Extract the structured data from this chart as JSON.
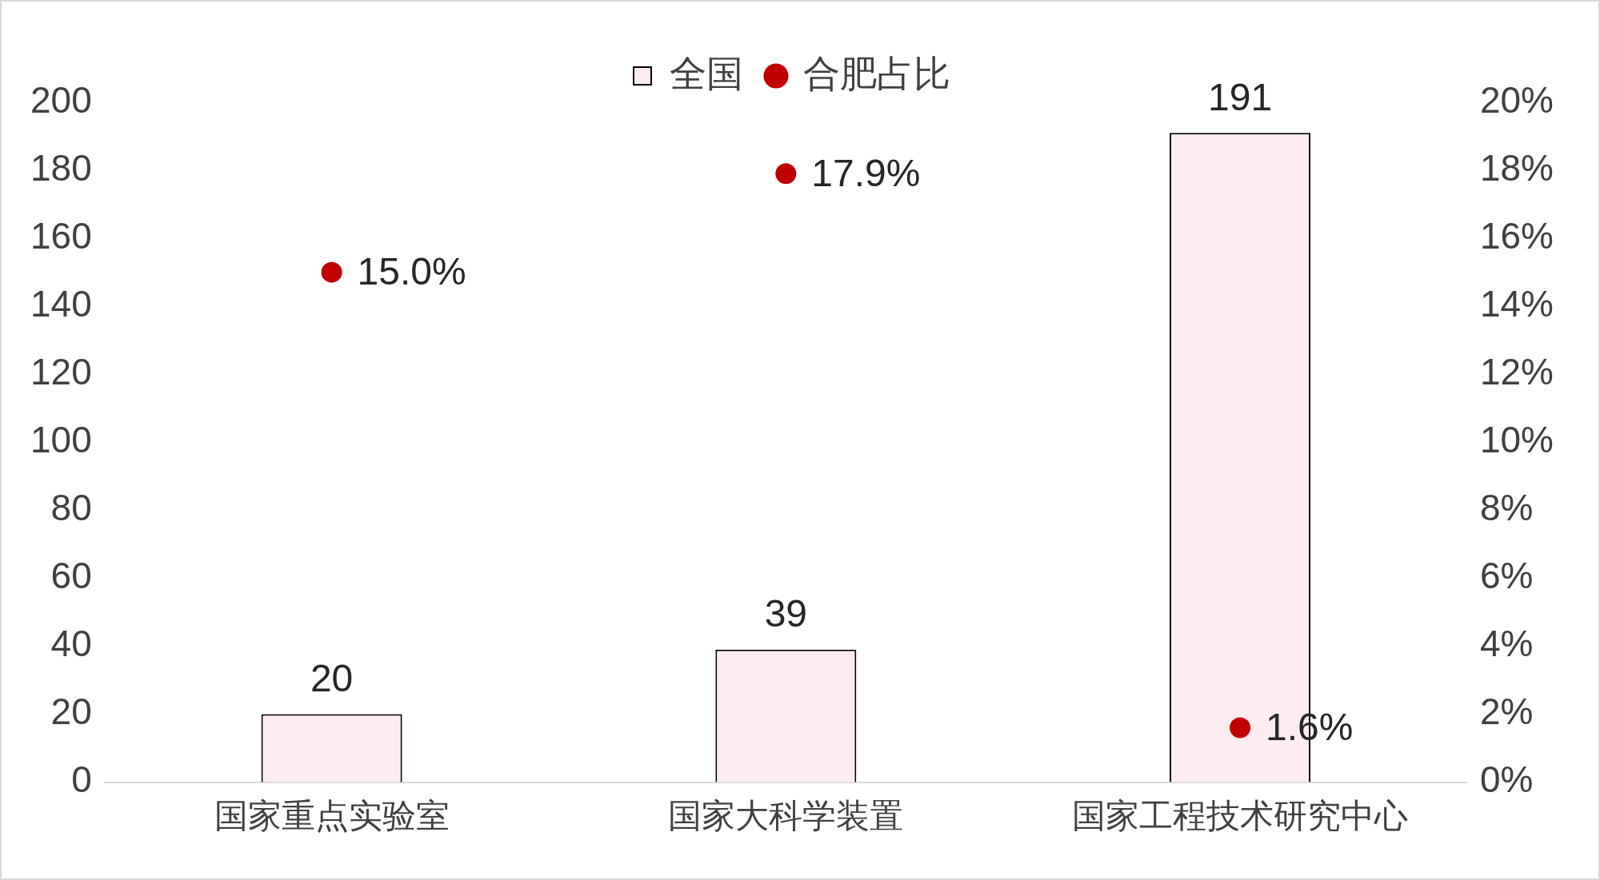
{
  "chart_data": {
    "type": "bar",
    "categories": [
      "国家重点实验室",
      "国家大科学装置",
      "国家工程技术研究中心"
    ],
    "series": [
      {
        "name": "全国",
        "color": "#fcecef",
        "values": [
          20,
          39,
          191
        ],
        "value_labels": [
          "20",
          "39",
          "191"
        ]
      },
      {
        "name": "合肥占比",
        "type": "scatter",
        "axis": "y2",
        "color": "#c00000",
        "values": [
          15.0,
          17.9,
          1.6
        ],
        "value_labels": [
          "15.0%",
          "17.9%",
          "1.6%"
        ]
      }
    ],
    "ylim": [
      0,
      200
    ],
    "yticks": [
      0,
      20,
      40,
      60,
      80,
      100,
      120,
      140,
      160,
      180,
      200
    ],
    "y2lim": [
      0,
      20
    ],
    "y2ticks": [
      {
        "value": 0,
        "label": "0%"
      },
      {
        "value": 2,
        "label": "2%"
      },
      {
        "value": 4,
        "label": "4%"
      },
      {
        "value": 6,
        "label": "6%"
      },
      {
        "value": 8,
        "label": "8%"
      },
      {
        "value": 10,
        "label": "10%"
      },
      {
        "value": 12,
        "label": "12%"
      },
      {
        "value": 14,
        "label": "14%"
      },
      {
        "value": 16,
        "label": "16%"
      },
      {
        "value": 18,
        "label": "18%"
      },
      {
        "value": 20,
        "label": "20%"
      }
    ],
    "marker": "circle",
    "legend": "top",
    "grid": false
  }
}
